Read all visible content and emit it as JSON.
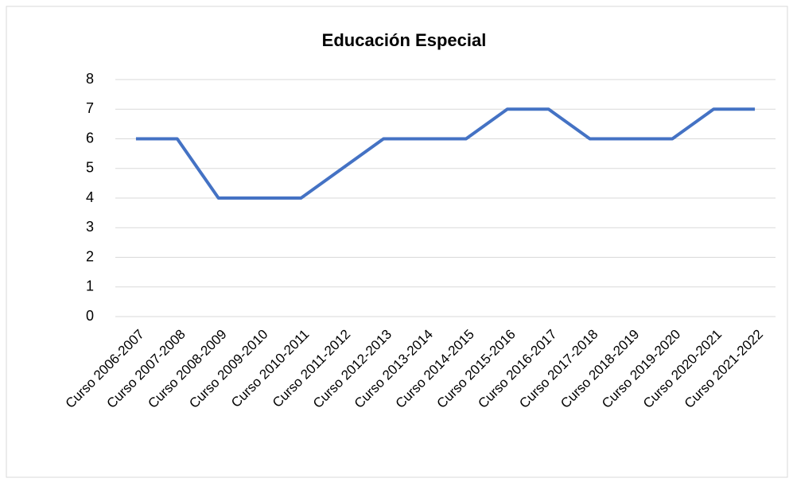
{
  "chart_data": {
    "type": "line",
    "title": "Educación Especial",
    "categories": [
      "Curso 2006-2007",
      "Curso 2007-2008",
      "Curso 2008-2009",
      "Curso 2009-2010",
      "Curso 2010-2011",
      "Curso 2011-2012",
      "Curso 2012-2013",
      "Curso 2013-2014",
      "Curso 2014-2015",
      "Curso 2015-2016",
      "Curso 2016-2017",
      "Curso 2017-2018",
      "Curso 2018-2019",
      "Curso 2019-2020",
      "Curso 2020-2021",
      "Curso 2021-2022"
    ],
    "values": [
      6,
      6,
      4,
      4,
      4,
      5,
      6,
      6,
      6,
      7,
      7,
      6,
      6,
      6,
      7,
      7
    ],
    "color": "#4472c4",
    "ylim": [
      0,
      8
    ],
    "yticks": [
      0,
      1,
      2,
      3,
      4,
      5,
      6,
      7,
      8
    ],
    "grid": true
  }
}
